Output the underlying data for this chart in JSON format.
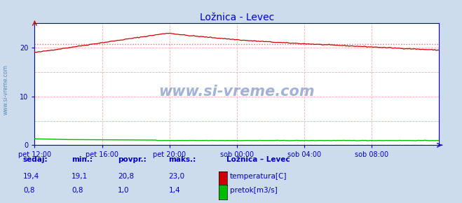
{
  "title": "Ložnica - Levec",
  "title_color": "#0000cc",
  "bg_color": "#ccdcec",
  "plot_bg_color": "#ffffff",
  "grid_color": "#ffaaaa",
  "axis_color": "#0000cc",
  "tick_color": "#0000cc",
  "temp_color": "#cc0000",
  "flow_color": "#00bb00",
  "avg_line_color": "#ff6666",
  "watermark_text": "www.si-vreme.com",
  "watermark_color": "#3355aa",
  "sidebar_text": "www.si-vreme.com",
  "sidebar_color": "#4477aa",
  "x_labels": [
    "pet 12:00",
    "pet 16:00",
    "pet 20:00",
    "sob 00:00",
    "sob 04:00",
    "sob 08:00"
  ],
  "x_ticks_norm": [
    0.0,
    0.1667,
    0.3333,
    0.5,
    0.6667,
    0.8333
  ],
  "ylim": [
    0,
    25
  ],
  "avg_temp": 20.8,
  "legend_title": "Ložnica – Levec",
  "legend_entries": [
    "temperatura[C]",
    "pretok[m3/s]"
  ],
  "legend_colors": [
    "#cc0000",
    "#00bb00"
  ],
  "table_headers": [
    "sedaj:",
    "min.:",
    "povpr.:",
    "maks.:"
  ],
  "table_values_temp": [
    "19,4",
    "19,1",
    "20,8",
    "23,0"
  ],
  "table_values_flow": [
    "0,8",
    "0,8",
    "1,0",
    "1,4"
  ]
}
